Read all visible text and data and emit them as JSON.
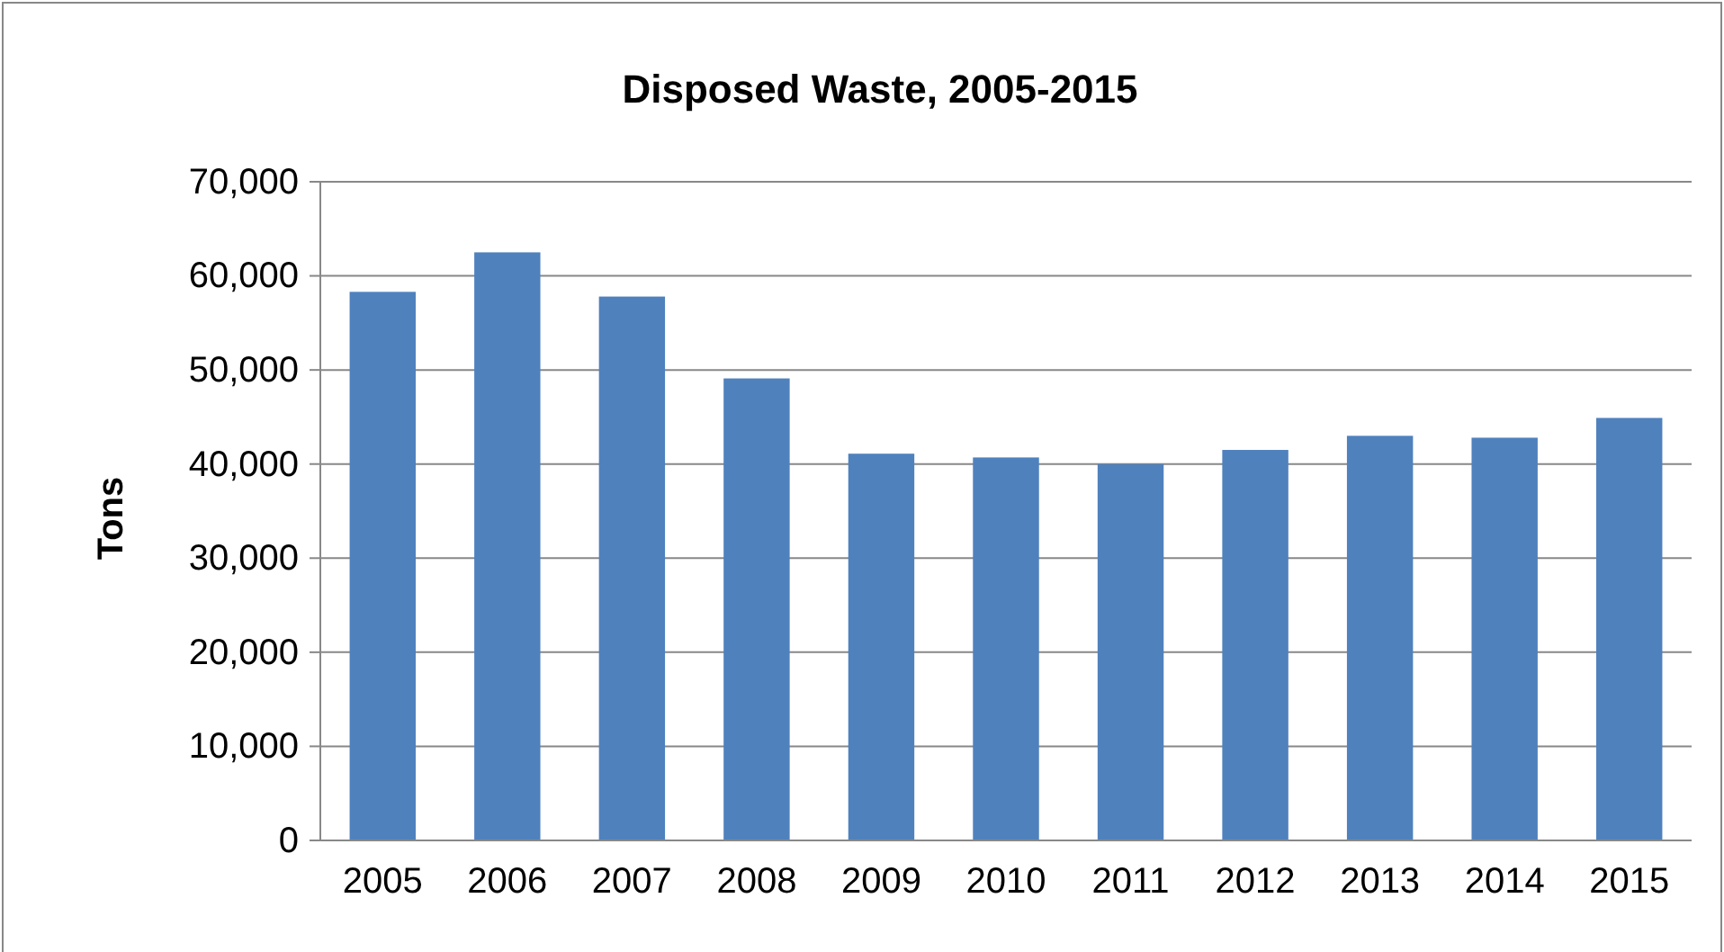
{
  "chart_data": {
    "type": "bar",
    "title": "Disposed Waste, 2005-2015",
    "ylabel": "Tons",
    "categories": [
      "2005",
      "2006",
      "2007",
      "2008",
      "2009",
      "2010",
      "2011",
      "2012",
      "2013",
      "2014",
      "2015"
    ],
    "values": [
      58300,
      62500,
      57800,
      49100,
      41100,
      40700,
      40000,
      41500,
      43000,
      42800,
      44900
    ],
    "color": "#4f81bd",
    "ylim": [
      0,
      70000
    ],
    "yticks": [
      {
        "value": 0,
        "label": "0"
      },
      {
        "value": 10000,
        "label": "10,000"
      },
      {
        "value": 20000,
        "label": "20,000"
      },
      {
        "value": 30000,
        "label": "30,000"
      },
      {
        "value": 40000,
        "label": "40,000"
      },
      {
        "value": 50000,
        "label": "50,000"
      },
      {
        "value": 60000,
        "label": "60,000"
      },
      {
        "value": 70000,
        "label": "70,000"
      }
    ],
    "grid": "y"
  }
}
